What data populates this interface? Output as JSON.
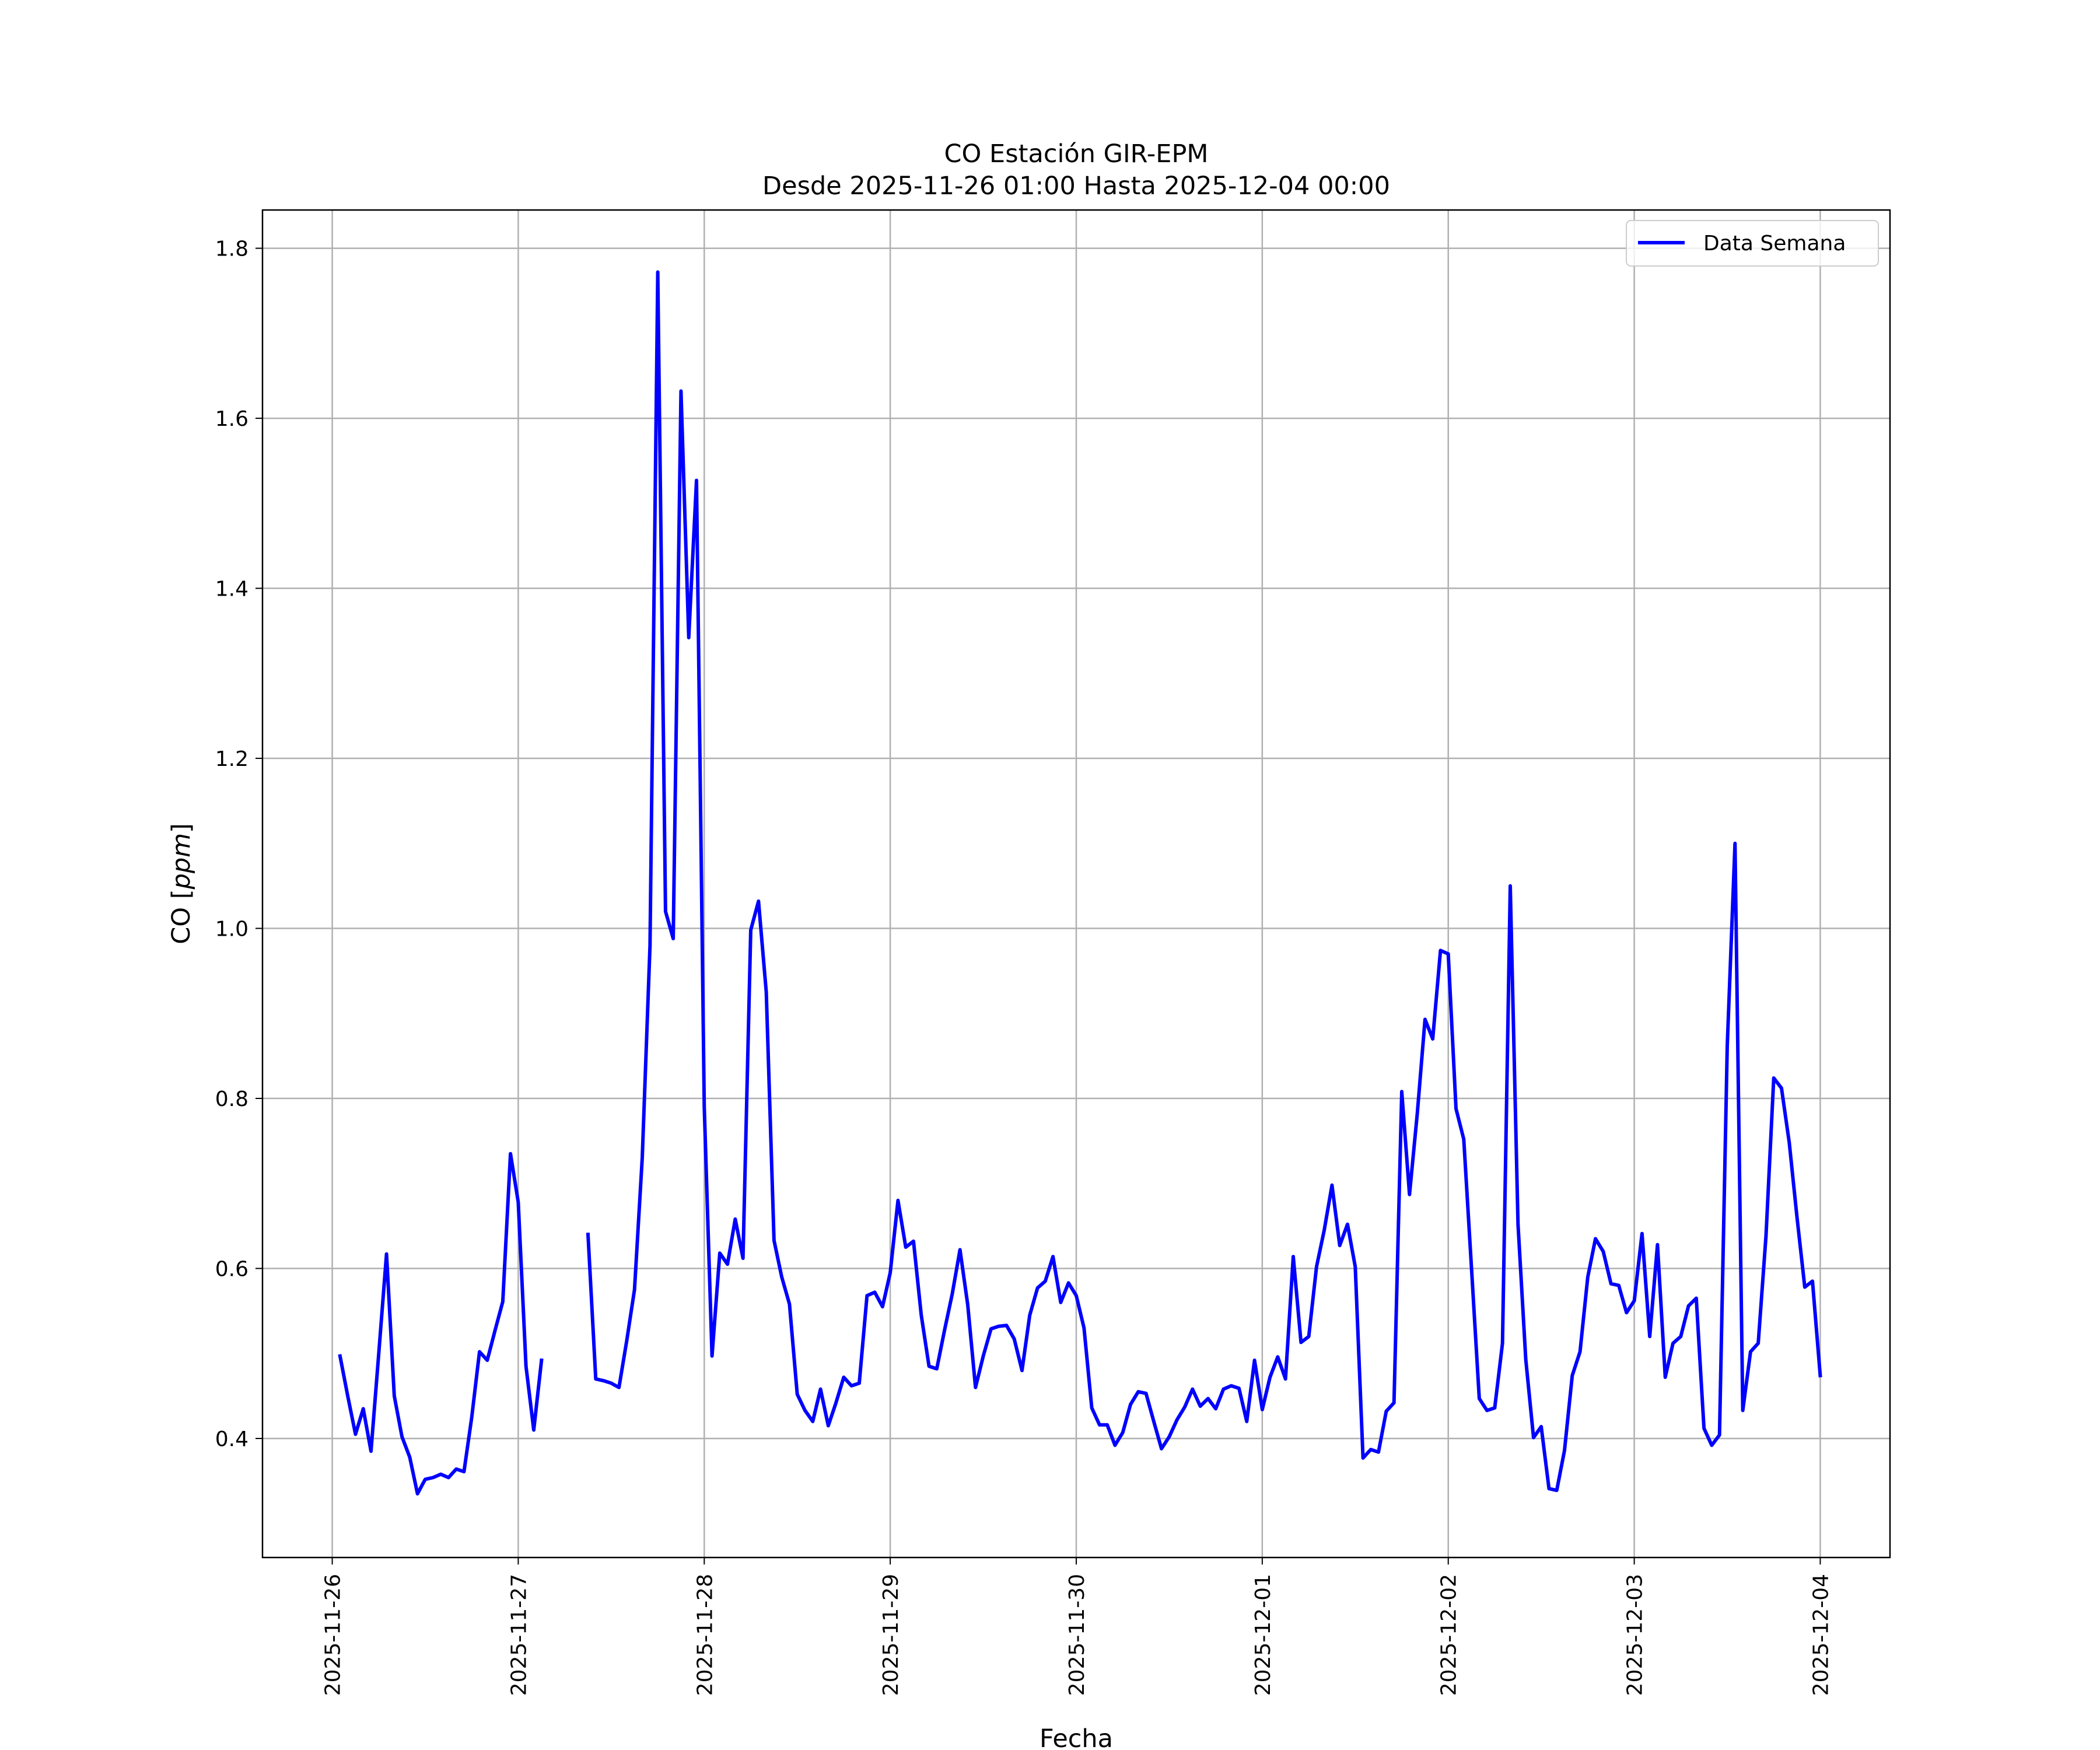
{
  "chart_data": {
    "type": "line",
    "title": "CO Estación GIR-EPM",
    "subtitle": "Desde 2025-11-26 01:00 Hasta 2025-12-04 00:00",
    "xlabel": "Fecha",
    "ylabel": "CO [ppm]",
    "ylabel_plain": "CO [",
    "ylabel_italic": "ppm",
    "ylabel_close": "]",
    "xlim": [
      "2025-11-25 15:00",
      "2025-12-04 09:00"
    ],
    "ylim": [
      0.26,
      1.845
    ],
    "grid": true,
    "legend_position": "top-right",
    "x_ticks": [
      "2025-11-26",
      "2025-11-27",
      "2025-11-28",
      "2025-11-29",
      "2025-11-30",
      "2025-12-01",
      "2025-12-02",
      "2025-12-03",
      "2025-12-04"
    ],
    "y_ticks": [
      "0.4",
      "0.6",
      "0.8",
      "1.0",
      "1.2",
      "1.4",
      "1.6",
      "1.8"
    ],
    "series": [
      {
        "name": "Data Semana",
        "color": "#0000ff",
        "segments": [
          [
            [
              "2025-11-26 01:00",
              0.497
            ],
            [
              "2025-11-26 02:00",
              0.45
            ],
            [
              "2025-11-26 03:00",
              0.405
            ],
            [
              "2025-11-26 04:00",
              0.435
            ],
            [
              "2025-11-26 05:00",
              0.385
            ],
            [
              "2025-11-26 06:00",
              0.5
            ],
            [
              "2025-11-26 07:00",
              0.617
            ],
            [
              "2025-11-26 08:00",
              0.45
            ],
            [
              "2025-11-26 09:00",
              0.402
            ],
            [
              "2025-11-26 10:00",
              0.378
            ],
            [
              "2025-11-26 11:00",
              0.335
            ],
            [
              "2025-11-26 12:00",
              0.352
            ],
            [
              "2025-11-26 13:00",
              0.354
            ],
            [
              "2025-11-26 14:00",
              0.358
            ],
            [
              "2025-11-26 15:00",
              0.354
            ],
            [
              "2025-11-26 16:00",
              0.364
            ],
            [
              "2025-11-26 17:00",
              0.361
            ],
            [
              "2025-11-26 18:00",
              0.425
            ],
            [
              "2025-11-26 19:00",
              0.502
            ],
            [
              "2025-11-26 20:00",
              0.492
            ],
            [
              "2025-11-26 21:00",
              0.527
            ],
            [
              "2025-11-26 22:00",
              0.561
            ],
            [
              "2025-11-26 23:00",
              0.735
            ],
            [
              "2025-11-27 00:00",
              0.678
            ],
            [
              "2025-11-27 01:00",
              0.485
            ],
            [
              "2025-11-27 02:00",
              0.41
            ],
            [
              "2025-11-27 03:00",
              0.492
            ]
          ],
          [
            [
              "2025-11-27 09:00",
              0.64
            ],
            [
              "2025-11-27 10:00",
              0.47
            ],
            [
              "2025-11-27 11:00",
              0.468
            ],
            [
              "2025-11-27 12:00",
              0.465
            ],
            [
              "2025-11-27 13:00",
              0.46
            ],
            [
              "2025-11-27 14:00",
              0.515
            ],
            [
              "2025-11-27 15:00",
              0.575
            ],
            [
              "2025-11-27 16:00",
              0.73
            ],
            [
              "2025-11-27 17:00",
              0.98
            ],
            [
              "2025-11-27 18:00",
              1.772
            ],
            [
              "2025-11-27 19:00",
              1.02
            ],
            [
              "2025-11-27 20:00",
              0.988
            ],
            [
              "2025-11-27 21:00",
              1.632
            ],
            [
              "2025-11-27 22:00",
              1.342
            ],
            [
              "2025-11-27 23:00",
              1.527
            ],
            [
              "2025-11-28 00:00",
              0.79
            ],
            [
              "2025-11-28 01:00",
              0.497
            ],
            [
              "2025-11-28 02:00",
              0.618
            ],
            [
              "2025-11-28 03:00",
              0.605
            ],
            [
              "2025-11-28 04:00",
              0.658
            ],
            [
              "2025-11-28 05:00",
              0.612
            ],
            [
              "2025-11-28 06:00",
              0.998
            ],
            [
              "2025-11-28 07:00",
              1.032
            ],
            [
              "2025-11-28 08:00",
              0.925
            ],
            [
              "2025-11-28 09:00",
              0.633
            ],
            [
              "2025-11-28 10:00",
              0.59
            ],
            [
              "2025-11-28 11:00",
              0.558
            ],
            [
              "2025-11-28 12:00",
              0.452
            ],
            [
              "2025-11-28 13:00",
              0.433
            ],
            [
              "2025-11-28 14:00",
              0.42
            ],
            [
              "2025-11-28 15:00",
              0.458
            ],
            [
              "2025-11-28 16:00",
              0.415
            ],
            [
              "2025-11-28 17:00",
              0.442
            ],
            [
              "2025-11-28 18:00",
              0.472
            ],
            [
              "2025-11-28 19:00",
              0.462
            ],
            [
              "2025-11-28 20:00",
              0.465
            ],
            [
              "2025-11-28 21:00",
              0.568
            ],
            [
              "2025-11-28 22:00",
              0.572
            ],
            [
              "2025-11-28 23:00",
              0.555
            ],
            [
              "2025-11-29 00:00",
              0.595
            ],
            [
              "2025-11-29 01:00",
              0.68
            ],
            [
              "2025-11-29 02:00",
              0.625
            ],
            [
              "2025-11-29 03:00",
              0.632
            ],
            [
              "2025-11-29 04:00",
              0.545
            ],
            [
              "2025-11-29 05:00",
              0.485
            ],
            [
              "2025-11-29 06:00",
              0.482
            ],
            [
              "2025-11-29 07:00",
              0.527
            ],
            [
              "2025-11-29 08:00",
              0.57
            ],
            [
              "2025-11-29 09:00",
              0.622
            ],
            [
              "2025-11-29 10:00",
              0.557
            ],
            [
              "2025-11-29 11:00",
              0.46
            ],
            [
              "2025-11-29 12:00",
              0.497
            ],
            [
              "2025-11-29 13:00",
              0.529
            ],
            [
              "2025-11-29 14:00",
              0.532
            ],
            [
              "2025-11-29 15:00",
              0.533
            ],
            [
              "2025-11-29 16:00",
              0.517
            ],
            [
              "2025-11-29 17:00",
              0.48
            ],
            [
              "2025-11-29 18:00",
              0.545
            ],
            [
              "2025-11-29 19:00",
              0.577
            ],
            [
              "2025-11-29 20:00",
              0.585
            ],
            [
              "2025-11-29 21:00",
              0.614
            ],
            [
              "2025-11-29 22:00",
              0.56
            ],
            [
              "2025-11-29 23:00",
              0.583
            ],
            [
              "2025-11-30 00:00",
              0.568
            ],
            [
              "2025-11-30 01:00",
              0.53
            ],
            [
              "2025-11-30 02:00",
              0.436
            ],
            [
              "2025-11-30 03:00",
              0.416
            ],
            [
              "2025-11-30 04:00",
              0.416
            ],
            [
              "2025-11-30 05:00",
              0.392
            ],
            [
              "2025-11-30 06:00",
              0.407
            ],
            [
              "2025-11-30 07:00",
              0.44
            ],
            [
              "2025-11-30 08:00",
              0.455
            ],
            [
              "2025-11-30 09:00",
              0.453
            ],
            [
              "2025-11-30 10:00",
              0.42
            ],
            [
              "2025-11-30 11:00",
              0.388
            ],
            [
              "2025-11-30 12:00",
              0.402
            ],
            [
              "2025-11-30 13:00",
              0.422
            ],
            [
              "2025-11-30 14:00",
              0.437
            ],
            [
              "2025-11-30 15:00",
              0.458
            ],
            [
              "2025-11-30 16:00",
              0.438
            ],
            [
              "2025-11-30 17:00",
              0.447
            ],
            [
              "2025-11-30 18:00",
              0.435
            ],
            [
              "2025-11-30 19:00",
              0.458
            ],
            [
              "2025-11-30 20:00",
              0.462
            ],
            [
              "2025-11-30 21:00",
              0.459
            ],
            [
              "2025-11-30 22:00",
              0.42
            ],
            [
              "2025-11-30 23:00",
              0.492
            ],
            [
              "2025-12-01 00:00",
              0.434
            ],
            [
              "2025-12-01 01:00",
              0.472
            ],
            [
              "2025-12-01 02:00",
              0.496
            ],
            [
              "2025-12-01 03:00",
              0.47
            ],
            [
              "2025-12-01 04:00",
              0.614
            ],
            [
              "2025-12-01 05:00",
              0.513
            ],
            [
              "2025-12-01 06:00",
              0.52
            ],
            [
              "2025-12-01 07:00",
              0.602
            ],
            [
              "2025-12-01 08:00",
              0.645
            ],
            [
              "2025-12-01 09:00",
              0.698
            ],
            [
              "2025-12-01 10:00",
              0.627
            ],
            [
              "2025-12-01 11:00",
              0.652
            ],
            [
              "2025-12-01 12:00",
              0.602
            ],
            [
              "2025-12-01 13:00",
              0.377
            ],
            [
              "2025-12-01 14:00",
              0.387
            ],
            [
              "2025-12-01 15:00",
              0.384
            ],
            [
              "2025-12-01 16:00",
              0.432
            ],
            [
              "2025-12-01 17:00",
              0.442
            ],
            [
              "2025-12-01 18:00",
              0.808
            ],
            [
              "2025-12-01 19:00",
              0.687
            ],
            [
              "2025-12-01 20:00",
              0.782
            ],
            [
              "2025-12-01 21:00",
              0.893
            ],
            [
              "2025-12-01 22:00",
              0.87
            ],
            [
              "2025-12-01 23:00",
              0.974
            ],
            [
              "2025-12-02 00:00",
              0.97
            ],
            [
              "2025-12-02 01:00",
              0.788
            ],
            [
              "2025-12-02 02:00",
              0.752
            ],
            [
              "2025-12-02 03:00",
              0.6
            ],
            [
              "2025-12-02 04:00",
              0.447
            ],
            [
              "2025-12-02 05:00",
              0.433
            ],
            [
              "2025-12-02 06:00",
              0.436
            ],
            [
              "2025-12-02 07:00",
              0.512
            ],
            [
              "2025-12-02 08:00",
              1.05
            ],
            [
              "2025-12-02 09:00",
              0.652
            ],
            [
              "2025-12-02 10:00",
              0.493
            ],
            [
              "2025-12-02 11:00",
              0.401
            ],
            [
              "2025-12-02 12:00",
              0.414
            ],
            [
              "2025-12-02 13:00",
              0.341
            ],
            [
              "2025-12-02 14:00",
              0.339
            ],
            [
              "2025-12-02 15:00",
              0.386
            ],
            [
              "2025-12-02 16:00",
              0.474
            ],
            [
              "2025-12-02 17:00",
              0.502
            ],
            [
              "2025-12-02 18:00",
              0.59
            ],
            [
              "2025-12-02 19:00",
              0.635
            ],
            [
              "2025-12-02 20:00",
              0.62
            ],
            [
              "2025-12-02 21:00",
              0.582
            ],
            [
              "2025-12-02 22:00",
              0.58
            ],
            [
              "2025-12-02 23:00",
              0.548
            ],
            [
              "2025-12-03 00:00",
              0.562
            ],
            [
              "2025-12-03 01:00",
              0.641
            ],
            [
              "2025-12-03 02:00",
              0.52
            ],
            [
              "2025-12-03 03:00",
              0.628
            ],
            [
              "2025-12-03 04:00",
              0.472
            ],
            [
              "2025-12-03 05:00",
              0.512
            ],
            [
              "2025-12-03 06:00",
              0.52
            ],
            [
              "2025-12-03 07:00",
              0.556
            ],
            [
              "2025-12-03 08:00",
              0.565
            ],
            [
              "2025-12-03 09:00",
              0.412
            ],
            [
              "2025-12-03 10:00",
              0.392
            ],
            [
              "2025-12-03 11:00",
              0.404
            ],
            [
              "2025-12-03 12:00",
              0.862
            ],
            [
              "2025-12-03 13:00",
              1.1
            ],
            [
              "2025-12-03 14:00",
              0.433
            ],
            [
              "2025-12-03 15:00",
              0.502
            ],
            [
              "2025-12-03 16:00",
              0.512
            ],
            [
              "2025-12-03 17:00",
              0.638
            ],
            [
              "2025-12-03 18:00",
              0.824
            ],
            [
              "2025-12-03 19:00",
              0.812
            ],
            [
              "2025-12-03 20:00",
              0.748
            ],
            [
              "2025-12-03 21:00",
              0.66
            ],
            [
              "2025-12-03 22:00",
              0.578
            ],
            [
              "2025-12-03 23:00",
              0.585
            ],
            [
              "2025-12-04 00:00",
              0.474
            ]
          ]
        ]
      }
    ]
  }
}
